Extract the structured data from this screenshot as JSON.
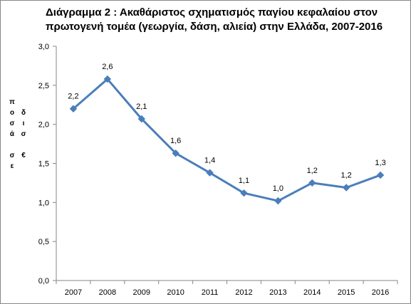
{
  "chart_data": {
    "type": "line",
    "title": "Διάγραμμα 2 : Ακαθάριστος σχηματισμός παγίου κεφαλαίου  στον\nπρωτογενή τομέα (γεωργία, δάση, αλιεία) στην Ελλάδα, 2007-2016",
    "ylabel": "ποσά σε δισ €",
    "ylabel_columns": [
      [
        "π",
        "ο",
        "σ",
        "ά",
        "",
        "σ",
        "ε"
      ],
      [
        "",
        "δ",
        "ι",
        "σ",
        "",
        "€",
        ""
      ]
    ],
    "x": [
      "2007",
      "2008",
      "2009",
      "2010",
      "2011",
      "2012",
      "2013",
      "2014",
      "2015",
      "2016"
    ],
    "series": [
      {
        "values": [
          2.2,
          2.58,
          2.07,
          1.63,
          1.38,
          1.12,
          1.02,
          1.25,
          1.19,
          1.35
        ],
        "labels": [
          "2,2",
          "2,6",
          "2,1",
          "1,6",
          "1,4",
          "1,1",
          "1,0",
          "1,2",
          "1,2",
          "1,3"
        ],
        "color": "#4a7ebb"
      }
    ],
    "ylim": [
      0,
      3
    ],
    "yticks": [
      "0,0",
      "0,5",
      "1,0",
      "1,5",
      "2,0",
      "2,5",
      "3,0"
    ],
    "grid": false,
    "legend": "none"
  }
}
